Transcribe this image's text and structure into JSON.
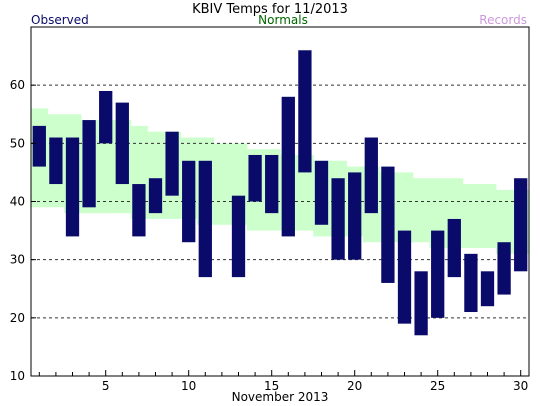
{
  "chart_data": {
    "type": "bar",
    "title": "KBIV Temps for 11/2013",
    "legend": [
      "Observed",
      "Normals",
      "Records"
    ],
    "legend_placement": "top",
    "xlabel": "November 2013",
    "ylabel": "",
    "x_ticks": [
      5,
      10,
      15,
      20,
      25,
      30
    ],
    "y_ticks": [
      10,
      20,
      30,
      40,
      50,
      60
    ],
    "xlim": [
      0.5,
      30.5
    ],
    "ylim": [
      10,
      70
    ],
    "grid": "horizontal dashed",
    "colors": {
      "observed": "#0a0a6a",
      "normals": "#ccffcc",
      "normals_legend": "#006600",
      "records_legend": "#cc99dd",
      "grid": "#333333"
    },
    "observed": {
      "days": [
        1,
        2,
        3,
        4,
        5,
        6,
        7,
        8,
        9,
        10,
        11,
        12,
        13,
        14,
        15,
        16,
        17,
        18,
        19,
        20,
        21,
        22,
        23,
        24,
        25,
        26,
        27,
        28,
        29,
        30
      ],
      "high": [
        53,
        51,
        51,
        54,
        59,
        57,
        43,
        44,
        52,
        47,
        47,
        null,
        41,
        48,
        48,
        58,
        66,
        47,
        44,
        45,
        51,
        46,
        35,
        28,
        35,
        37,
        31,
        28,
        33,
        44
      ],
      "low": [
        46,
        43,
        34,
        39,
        50,
        43,
        34,
        38,
        41,
        33,
        27,
        null,
        27,
        40,
        38,
        34,
        45,
        36,
        30,
        30,
        38,
        26,
        19,
        17,
        20,
        27,
        21,
        22,
        24,
        28
      ]
    },
    "normals": {
      "days": [
        1,
        2,
        3,
        4,
        5,
        6,
        7,
        8,
        9,
        10,
        11,
        12,
        13,
        14,
        15,
        16,
        17,
        18,
        19,
        20,
        21,
        22,
        23,
        24,
        25,
        26,
        27,
        28,
        29,
        30
      ],
      "high": [
        56,
        55,
        55,
        54,
        54,
        54,
        53,
        52,
        52,
        51,
        51,
        50,
        50,
        49,
        49,
        48,
        48,
        47,
        47,
        46,
        46,
        45,
        45,
        44,
        44,
        44,
        43,
        43,
        42,
        42
      ],
      "low": [
        39,
        39,
        38,
        38,
        38,
        38,
        37,
        37,
        37,
        37,
        36,
        36,
        36,
        35,
        35,
        35,
        35,
        34,
        34,
        34,
        33,
        33,
        33,
        33,
        32,
        32,
        32,
        32,
        31,
        31
      ]
    }
  }
}
